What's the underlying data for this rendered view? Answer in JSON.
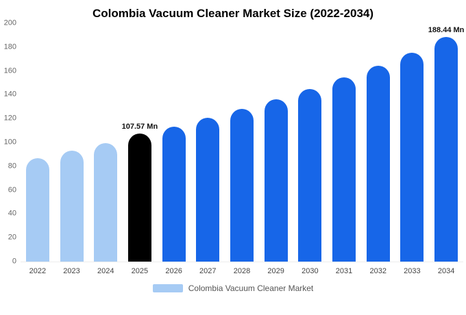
{
  "legend": {
    "label": "Colombia Vacuum Cleaner Market",
    "color": "#a6cbf4"
  },
  "chart_data": {
    "type": "bar",
    "title": "Colombia Vacuum Cleaner Market Size (2022-2034)",
    "xlabel": "",
    "ylabel": "",
    "unit": "Mn",
    "categories": [
      "2022",
      "2023",
      "2024",
      "2025",
      "2026",
      "2027",
      "2028",
      "2029",
      "2030",
      "2031",
      "2032",
      "2033",
      "2034"
    ],
    "values": [
      87,
      93,
      99.5,
      107.57,
      113.5,
      120.5,
      128,
      136,
      145,
      154.5,
      164.5,
      175.5,
      188.44
    ],
    "bar_colors": [
      "#a6cbf4",
      "#a6cbf4",
      "#a6cbf4",
      "#000000",
      "#1766e8",
      "#1766e8",
      "#1766e8",
      "#1766e8",
      "#1766e8",
      "#1766e8",
      "#1766e8",
      "#1766e8",
      "#1766e8"
    ],
    "annotations": [
      {
        "index": 3,
        "text": "107.57 Mn"
      },
      {
        "index": 12,
        "text": "188.44 Mn"
      }
    ],
    "ylim": [
      0,
      200
    ],
    "yticks": [
      0,
      20,
      40,
      60,
      80,
      100,
      120,
      140,
      160,
      180,
      200
    ],
    "grid": false,
    "legend_position": "bottom"
  }
}
